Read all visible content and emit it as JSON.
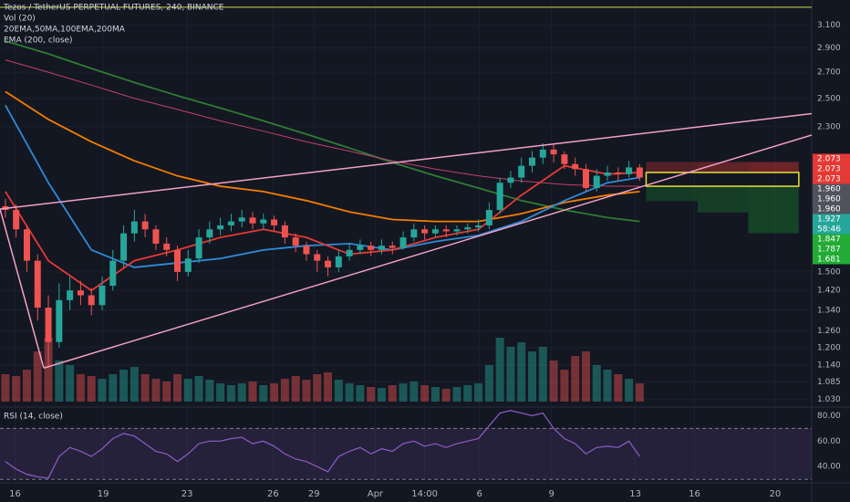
{
  "chart_data": {
    "type": "candlestick",
    "title": "Tezos / TetherUS PERPETUAL FUTURES, 240, BINANCE",
    "indicator_labels": [
      "Vol (20)",
      "20EMA,50MA,100EMA,200MA",
      "EMA (200, close)"
    ],
    "rsi_title": "RSI (14, close)",
    "log_scale": true,
    "grid": true,
    "up_color": "#26a69a",
    "down_color": "#ef5350",
    "xlim": [
      -0.5,
      75
    ],
    "xticks": [
      {
        "value": 0.9,
        "label": "16"
      },
      {
        "value": 9.1,
        "label": "19"
      },
      {
        "value": 16.9,
        "label": "23"
      },
      {
        "value": 24.9,
        "label": "26"
      },
      {
        "value": 28.7,
        "label": "29"
      },
      {
        "value": 34.4,
        "label": "Apr"
      },
      {
        "value": 39.0,
        "label": "14:00"
      },
      {
        "value": 44.1,
        "label": "6"
      },
      {
        "value": 50.8,
        "label": "9"
      },
      {
        "value": 58.6,
        "label": "13"
      },
      {
        "value": 64.1,
        "label": "16"
      },
      {
        "value": 71.6,
        "label": "20"
      }
    ],
    "ylim": [
      1.01,
      3.34
    ],
    "yticks": [
      {
        "value": 3.1,
        "label": "3.100"
      },
      {
        "value": 2.9,
        "label": "2.900"
      },
      {
        "value": 2.7,
        "label": "2.700"
      },
      {
        "value": 2.5,
        "label": "2.500"
      },
      {
        "value": 2.3,
        "label": "2.300"
      },
      {
        "value": 1.5,
        "label": "1.500"
      },
      {
        "value": 1.42,
        "label": "1.420"
      },
      {
        "value": 1.34,
        "label": "1.340"
      },
      {
        "value": 1.26,
        "label": "1.260"
      },
      {
        "value": 1.2,
        "label": "1.200"
      },
      {
        "value": 1.14,
        "label": "1.140"
      },
      1.085,
      {
        "value": 1.03,
        "label": "1.030"
      }
    ],
    "open": [
      1.82,
      1.8,
      1.7,
      1.55,
      1.35,
      1.22,
      1.38,
      1.42,
      1.4,
      1.36,
      1.44,
      1.55,
      1.68,
      1.74,
      1.7,
      1.63,
      1.6,
      1.5,
      1.56,
      1.66,
      1.7,
      1.72,
      1.74,
      1.76,
      1.73,
      1.75,
      1.72,
      1.66,
      1.62,
      1.58,
      1.55,
      1.52,
      1.57,
      1.6,
      1.62,
      1.6,
      1.62,
      1.61,
      1.66,
      1.7,
      1.68,
      1.7,
      1.69,
      1.7,
      1.71,
      1.72,
      1.8,
      1.95,
      1.98,
      2.05,
      2.1,
      2.15,
      2.12,
      2.06,
      2.03,
      1.92,
      1.99,
      2.01,
      2.0,
      2.04
    ],
    "high": [
      1.86,
      1.83,
      1.72,
      1.58,
      1.4,
      1.45,
      1.48,
      1.46,
      1.43,
      1.48,
      1.6,
      1.72,
      1.8,
      1.78,
      1.72,
      1.66,
      1.62,
      1.6,
      1.7,
      1.74,
      1.76,
      1.78,
      1.8,
      1.79,
      1.78,
      1.77,
      1.74,
      1.68,
      1.64,
      1.6,
      1.57,
      1.6,
      1.63,
      1.65,
      1.64,
      1.65,
      1.64,
      1.69,
      1.73,
      1.72,
      1.72,
      1.72,
      1.72,
      1.73,
      1.75,
      1.84,
      1.98,
      2.02,
      2.1,
      2.14,
      2.19,
      2.18,
      2.14,
      2.1,
      2.06,
      2.03,
      2.05,
      2.04,
      2.08,
      2.06
    ],
    "low": [
      1.76,
      1.66,
      1.5,
      1.3,
      1.13,
      1.2,
      1.34,
      1.36,
      1.32,
      1.34,
      1.42,
      1.52,
      1.64,
      1.66,
      1.6,
      1.57,
      1.46,
      1.48,
      1.54,
      1.63,
      1.67,
      1.69,
      1.71,
      1.7,
      1.7,
      1.69,
      1.63,
      1.59,
      1.55,
      1.5,
      1.48,
      1.5,
      1.55,
      1.58,
      1.57,
      1.58,
      1.58,
      1.6,
      1.64,
      1.65,
      1.66,
      1.66,
      1.67,
      1.68,
      1.69,
      1.7,
      1.78,
      1.92,
      1.95,
      2.01,
      2.06,
      2.07,
      2.03,
      1.99,
      1.9,
      1.9,
      1.96,
      1.96,
      1.98,
      1.96
    ],
    "close": [
      1.8,
      1.7,
      1.55,
      1.35,
      1.22,
      1.38,
      1.42,
      1.4,
      1.36,
      1.44,
      1.55,
      1.68,
      1.74,
      1.7,
      1.63,
      1.6,
      1.5,
      1.56,
      1.66,
      1.7,
      1.72,
      1.74,
      1.76,
      1.73,
      1.75,
      1.72,
      1.66,
      1.62,
      1.58,
      1.55,
      1.52,
      1.57,
      1.6,
      1.62,
      1.6,
      1.62,
      1.61,
      1.66,
      1.7,
      1.68,
      1.7,
      1.69,
      1.7,
      1.71,
      1.72,
      1.8,
      1.95,
      1.98,
      2.05,
      2.1,
      2.15,
      2.12,
      2.06,
      2.03,
      1.92,
      1.99,
      2.01,
      2.0,
      2.04,
      1.98
    ],
    "volume": [
      30,
      28,
      35,
      55,
      70,
      45,
      40,
      30,
      28,
      25,
      30,
      35,
      38,
      30,
      25,
      22,
      30,
      25,
      28,
      24,
      20,
      18,
      20,
      22,
      18,
      20,
      25,
      28,
      24,
      30,
      32,
      24,
      20,
      18,
      16,
      15,
      18,
      20,
      22,
      18,
      16,
      14,
      16,
      18,
      20,
      40,
      70,
      60,
      65,
      55,
      60,
      45,
      35,
      50,
      55,
      40,
      35,
      30,
      25,
      20
    ],
    "vlim": [
      0,
      100
    ],
    "ma_x": [
      0,
      4,
      8,
      12,
      16,
      20,
      24,
      28,
      32,
      36,
      40,
      44,
      48,
      52,
      56,
      59
    ],
    "moving_averages": [
      {
        "color": "#2e7d32",
        "values": [
          2.96,
          2.85,
          2.73,
          2.62,
          2.52,
          2.43,
          2.34,
          2.25,
          2.16,
          2.07,
          1.99,
          1.92,
          1.85,
          1.8,
          1.76,
          1.74
        ]
      },
      {
        "color": "#c2406e",
        "values": [
          2.8,
          2.7,
          2.6,
          2.5,
          2.42,
          2.34,
          2.27,
          2.2,
          2.14,
          2.08,
          2.03,
          1.99,
          1.96,
          1.94,
          1.93,
          1.93
        ]
      },
      {
        "color": "#f57c00",
        "values": [
          2.55,
          2.35,
          2.2,
          2.08,
          1.99,
          1.93,
          1.9,
          1.85,
          1.79,
          1.75,
          1.74,
          1.74,
          1.78,
          1.84,
          1.88,
          1.9
        ]
      },
      {
        "color": "#2e8bd8",
        "values": [
          2.45,
          1.95,
          1.6,
          1.52,
          1.54,
          1.56,
          1.6,
          1.62,
          1.63,
          1.6,
          1.64,
          1.67,
          1.74,
          1.85,
          1.95,
          1.98
        ]
      },
      {
        "color": "#e53935",
        "values": [
          1.9,
          1.55,
          1.42,
          1.55,
          1.6,
          1.66,
          1.7,
          1.66,
          1.58,
          1.6,
          1.66,
          1.7,
          1.88,
          2.05,
          2.0,
          2.01
        ]
      }
    ],
    "trendlines": [
      {
        "color": "#8f9a3c",
        "points": [
          [
            -0.5,
            3.27
          ],
          [
            75,
            3.27
          ]
        ]
      },
      {
        "color": "#f4a0c8",
        "points": [
          [
            -0.5,
            1.805
          ],
          [
            75,
            2.39
          ]
        ]
      },
      {
        "color": "#f4a0c8",
        "points": [
          [
            3.57,
            1.13
          ],
          [
            75,
            2.244
          ]
        ]
      },
      {
        "color": "#f4a0c8",
        "points": [
          [
            -0.5,
            1.805
          ],
          [
            3.57,
            1.13
          ]
        ]
      }
    ],
    "position": {
      "stop": 2.073,
      "entry_top": 2.01,
      "entry_bottom": 1.93,
      "targets": [
        1.847,
        1.787,
        1.681
      ],
      "x": [
        59.6,
        64.4,
        69.1,
        73.8
      ]
    },
    "price_labels": [
      {
        "value": 2.073,
        "color": "#e53935"
      },
      {
        "value": 2.073,
        "color": "#e53935"
      },
      {
        "value": 2.073,
        "color": "#e53935"
      },
      {
        "value": {
          "value": 1.96,
          "label": "1.960"
        },
        "color": "#50535e"
      },
      {
        "value": {
          "value": 1.96,
          "label": "1.960"
        },
        "color": "#50535e"
      },
      {
        "value": {
          "value": 1.96,
          "label": "1.960"
        },
        "color": "#50535e"
      },
      {
        "value": 1.927,
        "color": "#26a69a"
      },
      {
        "value": "58:46",
        "color": "#26a69a"
      },
      {
        "value": 1.847,
        "color": "#22ab35"
      },
      {
        "value": 1.787,
        "color": "#22ab35"
      },
      {
        "value": 1.681,
        "color": "#22ab35"
      }
    ],
    "rsi": [
      44,
      38,
      34,
      32,
      31,
      48,
      55,
      52,
      48,
      54,
      62,
      66,
      64,
      58,
      52,
      50,
      44,
      50,
      58,
      60,
      60,
      62,
      63,
      58,
      60,
      56,
      50,
      46,
      44,
      40,
      36,
      48,
      52,
      55,
      50,
      54,
      52,
      58,
      60,
      56,
      58,
      55,
      58,
      60,
      62,
      72,
      82,
      84,
      82,
      80,
      82,
      70,
      62,
      58,
      50,
      55,
      56,
      55,
      60,
      48
    ],
    "rsi_color": "#8e5cc7",
    "rsi_ylim": [
      28,
      86
    ],
    "rsi_yticks": [
      {
        "value": 80,
        "label": "80.00"
      },
      {
        "value": 60,
        "label": "60.00"
      },
      {
        "value": 40,
        "label": "40.00"
      }
    ],
    "rsi_band": [
      30,
      70
    ]
  }
}
